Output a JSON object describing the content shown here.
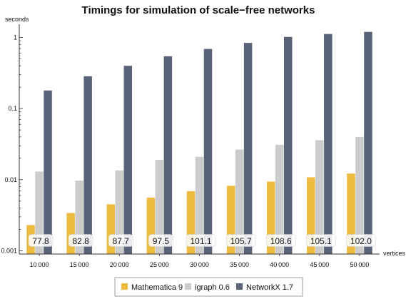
{
  "chart_data": {
    "type": "bar",
    "title": "Timings for simulation of scale−free networks",
    "xlabel": "vertices",
    "ylabel": "seconds",
    "yscale": "log",
    "ylim": [
      0.0009,
      1.4
    ],
    "yticks": [
      {
        "value": 0.001,
        "label": "0.001"
      },
      {
        "value": 0.01,
        "label": "0.01"
      },
      {
        "value": 0.1,
        "label": "0.1"
      },
      {
        "value": 1,
        "label": "1"
      }
    ],
    "categories": [
      "10 000",
      "15 000",
      "20 000",
      "25 000",
      "30 000",
      "35 000",
      "40 000",
      "45 000",
      "50 000"
    ],
    "series": [
      {
        "name": "Mathematica 9",
        "color": "#ecbb3f",
        "values": [
          0.0023,
          0.0034,
          0.0045,
          0.0056,
          0.0069,
          0.0082,
          0.0094,
          0.0108,
          0.0122
        ]
      },
      {
        "name": "igraph 0.6",
        "color": "#cccccc",
        "values": [
          0.013,
          0.0097,
          0.0135,
          0.019,
          0.021,
          0.0265,
          0.031,
          0.036,
          0.04
        ]
      },
      {
        "name": "NetworkX 1.7",
        "color": "#5a6478",
        "values": [
          0.18,
          0.285,
          0.4,
          0.545,
          0.69,
          0.84,
          1.02,
          1.12,
          1.2
        ]
      }
    ],
    "annotations": [
      "77.8",
      "82.8",
      "87.7",
      "97.5",
      "101.1",
      "105.7",
      "108.6",
      "105.1",
      "102.0"
    ],
    "legend_position": "bottom"
  }
}
